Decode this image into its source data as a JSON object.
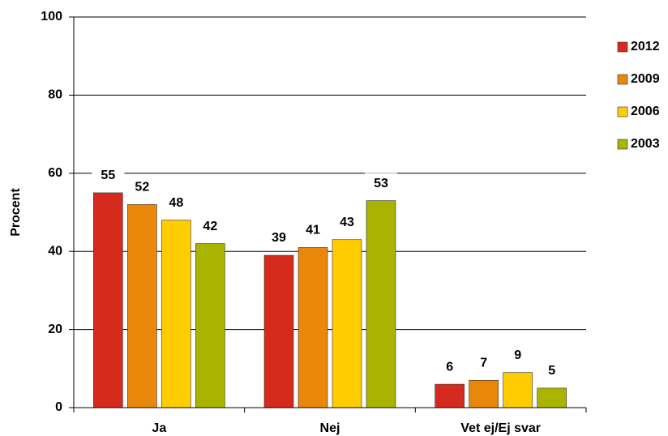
{
  "chart_data": {
    "type": "bar",
    "y_label": "Procent",
    "categories": [
      "Ja",
      "Nej",
      "Vet ej/Ej svar"
    ],
    "series": [
      {
        "name": "2012",
        "color": "#d52b1e",
        "values": [
          55,
          39,
          6
        ]
      },
      {
        "name": "2009",
        "color": "#e8870a",
        "values": [
          52,
          41,
          7
        ]
      },
      {
        "name": "2006",
        "color": "#ffcc00",
        "values": [
          48,
          43,
          9
        ]
      },
      {
        "name": "2003",
        "color": "#a8b400",
        "values": [
          42,
          53,
          5
        ]
      }
    ],
    "ylim": [
      0,
      100
    ],
    "yticks": [
      0,
      20,
      40,
      60,
      80,
      100
    ],
    "grid": true,
    "legend": "right"
  }
}
